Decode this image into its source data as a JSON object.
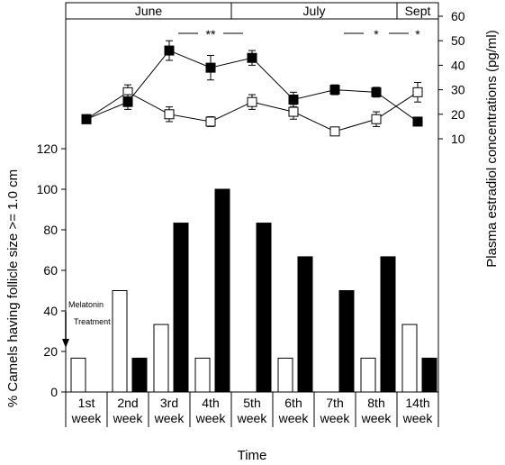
{
  "chart_data": {
    "type": "bar+line",
    "months": [
      {
        "label": "June",
        "from": 0,
        "to": 4
      },
      {
        "label": "July",
        "from": 4,
        "to": 8
      },
      {
        "label": "Sept",
        "from": 8,
        "to": 9
      }
    ],
    "categories": [
      [
        "1st",
        "week"
      ],
      [
        "2nd",
        "week"
      ],
      [
        "3rd",
        "week"
      ],
      [
        "4th",
        "week"
      ],
      [
        "5th",
        "week"
      ],
      [
        "6th",
        "week"
      ],
      [
        "7th",
        "week"
      ],
      [
        "8th",
        "week"
      ],
      [
        "14th",
        "week"
      ]
    ],
    "bars": {
      "ylabel": "% Camels having follicle size >= 1.0 cm",
      "ylim": [
        0,
        120
      ],
      "yticks": [
        0,
        20,
        40,
        60,
        80,
        100,
        120
      ],
      "series": [
        {
          "key": "control",
          "fill": "#ffffff",
          "values": [
            16.7,
            50,
            33.3,
            16.7,
            0,
            16.7,
            0,
            16.7,
            33.3
          ]
        },
        {
          "key": "melatonin",
          "fill": "#000000",
          "values": [
            0,
            16.7,
            83.3,
            100,
            83.3,
            66.7,
            50,
            66.7,
            16.7
          ]
        }
      ]
    },
    "lines": {
      "ylabel": "Plasma estradiol concentrations (pg/ml)",
      "ylim": [
        10,
        60
      ],
      "yticks": [
        10,
        20,
        30,
        40,
        50,
        60
      ],
      "series": [
        {
          "key": "control",
          "marker": "open-square",
          "values": [
            18,
            29,
            20,
            17,
            25,
            21,
            13,
            18,
            29
          ],
          "errors": [
            1,
            3,
            3,
            2,
            3,
            3,
            1,
            3,
            4
          ]
        },
        {
          "key": "melatonin",
          "marker": "filled-square",
          "values": [
            18,
            25,
            46,
            39,
            43,
            26,
            30,
            29,
            17
          ],
          "errors": [
            1,
            3,
            4,
            5,
            3,
            3,
            2,
            2,
            1
          ]
        }
      ],
      "significance": [
        {
          "label": "**",
          "from": 2,
          "to": 4
        },
        {
          "label": "*",
          "from": 6,
          "to": 8
        },
        {
          "label": "*",
          "at": 8
        }
      ]
    },
    "annotation": {
      "lines": [
        "Melatonin",
        "Treatment"
      ],
      "at_category": 0
    },
    "xlabel": "Time"
  }
}
